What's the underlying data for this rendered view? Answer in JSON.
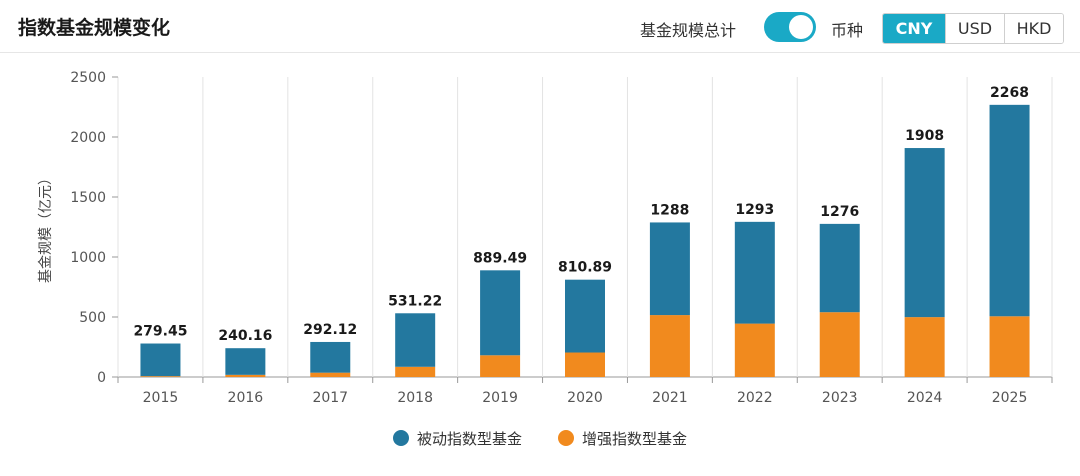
{
  "header": {
    "title": "指数基金规模变化",
    "total_label": "基金规模总计",
    "total_toggle_on": true,
    "currency_label": "币种",
    "currencies": [
      "CNY",
      "USD",
      "HKD"
    ],
    "selected_currency": "CNY"
  },
  "chart_data": {
    "type": "bar",
    "stacked": true,
    "ylabel": "基金规模（亿元）",
    "ylim": [
      0,
      2500
    ],
    "yticks": [
      0,
      500,
      1000,
      1500,
      2000,
      2500
    ],
    "categories": [
      "2015",
      "2016",
      "2017",
      "2018",
      "2019",
      "2020",
      "2021",
      "2022",
      "2023",
      "2024",
      "2025"
    ],
    "totals": [
      "279.45",
      "240.16",
      "292.12",
      "531.22",
      "889.49",
      "810.89",
      "1288",
      "1293",
      "1276",
      "1908",
      "2268"
    ],
    "series": [
      {
        "name": "被动指数型基金",
        "color": "#23789f",
        "values": [
          272,
          222,
          256,
          446,
          708,
          607,
          772,
          848,
          736,
          1409,
          1762
        ]
      },
      {
        "name": "增强指数型基金",
        "color": "#f18a1e",
        "values": [
          7,
          18,
          36,
          85,
          181,
          204,
          516,
          445,
          540,
          499,
          506
        ]
      }
    ],
    "grid": "vertical-category-separators",
    "legend_position": "bottom-center"
  }
}
